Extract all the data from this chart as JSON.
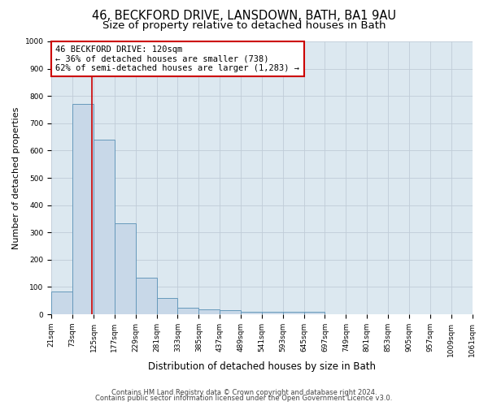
{
  "title1": "46, BECKFORD DRIVE, LANSDOWN, BATH, BA1 9AU",
  "title2": "Size of property relative to detached houses in Bath",
  "xlabel": "Distribution of detached houses by size in Bath",
  "ylabel": "Number of detached properties",
  "bin_edges": [
    21,
    73,
    125,
    177,
    229,
    281,
    333,
    385,
    437,
    489,
    541,
    593,
    645,
    697,
    749,
    801,
    853,
    905,
    957,
    1009,
    1061
  ],
  "bar_heights": [
    85,
    770,
    640,
    335,
    135,
    60,
    25,
    18,
    15,
    10,
    8,
    8,
    8,
    0,
    0,
    0,
    0,
    0,
    0,
    0
  ],
  "bar_color": "#c8d8e8",
  "bar_edge_color": "#6699bb",
  "property_line_x": 120,
  "property_line_color": "#cc0000",
  "annotation_line1": "46 BECKFORD DRIVE: 120sqm",
  "annotation_line2": "← 36% of detached houses are smaller (738)",
  "annotation_line3": "62% of semi-detached houses are larger (1,283) →",
  "annotation_box_color": "#ffffff",
  "annotation_box_edge_color": "#cc0000",
  "ylim": [
    0,
    1000
  ],
  "tick_labels": [
    "21sqm",
    "73sqm",
    "125sqm",
    "177sqm",
    "229sqm",
    "281sqm",
    "333sqm",
    "385sqm",
    "437sqm",
    "489sqm",
    "541sqm",
    "593sqm",
    "645sqm",
    "697sqm",
    "749sqm",
    "801sqm",
    "853sqm",
    "905sqm",
    "957sqm",
    "1009sqm",
    "1061sqm"
  ],
  "footer1": "Contains HM Land Registry data © Crown copyright and database right 2024.",
  "footer2": "Contains public sector information licensed under the Open Government Licence v3.0.",
  "background_color": "#ffffff",
  "plot_bg_color": "#dce8f0",
  "title1_fontsize": 10.5,
  "title2_fontsize": 9.5,
  "xlabel_fontsize": 8.5,
  "ylabel_fontsize": 8,
  "tick_fontsize": 6.5,
  "footer_fontsize": 6.0,
  "grid_color": "#c0ccd8"
}
